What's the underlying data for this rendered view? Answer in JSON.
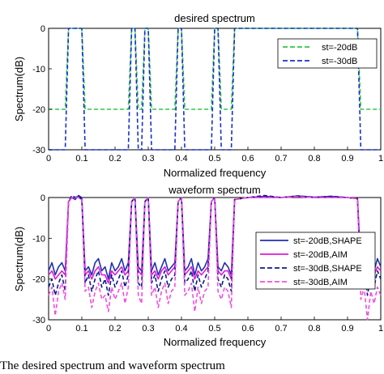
{
  "caption": "The desired spectrum and waveform spectrum",
  "chart_data": [
    {
      "type": "line",
      "title": "desired spectrum",
      "xlabel": "Normalized frequency",
      "ylabel": "Spectrum(dB)",
      "xlim": [
        0,
        1
      ],
      "ylim": [
        -30,
        0
      ],
      "xticks": [
        "0",
        "0.1",
        "0.2",
        "0.3",
        "0.4",
        "0.5",
        "0.6",
        "0.7",
        "0.8",
        "0.9",
        "1"
      ],
      "yticks": [
        "0",
        "-10",
        "-20",
        "-30"
      ],
      "grid": false,
      "legend_position": "top-right",
      "series": [
        {
          "name": "st=-20dB",
          "color": "#2ec84a",
          "dash": "dashed",
          "x": [
            0,
            0.05,
            0.06,
            0.1,
            0.11,
            0.24,
            0.25,
            0.26,
            0.27,
            0.28,
            0.29,
            0.3,
            0.31,
            0.38,
            0.39,
            0.4,
            0.41,
            0.49,
            0.5,
            0.51,
            0.52,
            0.55,
            0.56,
            0.93,
            0.94,
            1
          ],
          "y": [
            -20,
            -20,
            0,
            0,
            -20,
            -20,
            0,
            0,
            -20,
            -20,
            0,
            0,
            -20,
            -20,
            0,
            0,
            -20,
            -20,
            0,
            0,
            -20,
            -20,
            0,
            0,
            -20,
            -20
          ]
        },
        {
          "name": "st=-30dB",
          "color": "#1730c8",
          "dash": "dashed",
          "x": [
            0,
            0.05,
            0.06,
            0.1,
            0.11,
            0.24,
            0.25,
            0.26,
            0.27,
            0.28,
            0.29,
            0.3,
            0.31,
            0.38,
            0.39,
            0.4,
            0.41,
            0.49,
            0.5,
            0.51,
            0.52,
            0.55,
            0.56,
            0.93,
            0.94,
            1
          ],
          "y": [
            -30,
            -30,
            0,
            0,
            -30,
            -30,
            0,
            0,
            -30,
            -30,
            0,
            0,
            -30,
            -30,
            0,
            0,
            -30,
            -30,
            0,
            0,
            -30,
            -30,
            0,
            0,
            -30,
            -30
          ]
        }
      ]
    },
    {
      "type": "line",
      "title": "waveform spectrum",
      "xlabel": "Normalized frequency",
      "ylabel": "Spectrum(dB)",
      "xlim": [
        0,
        1
      ],
      "ylim": [
        -30,
        0
      ],
      "xticks": [
        "0",
        "0.1",
        "0.2",
        "0.3",
        "0.4",
        "0.5",
        "0.6",
        "0.7",
        "0.8",
        "0.9",
        "1"
      ],
      "yticks": [
        "0",
        "-10",
        "-20",
        "-30"
      ],
      "grid": false,
      "legend_position": "bottom-right",
      "series": [
        {
          "name": "st=-20dB,SHAPE",
          "color": "#1f2fb4",
          "dash": "solid",
          "x": [
            0,
            0.01,
            0.02,
            0.03,
            0.04,
            0.05,
            0.06,
            0.07,
            0.08,
            0.09,
            0.1,
            0.11,
            0.12,
            0.13,
            0.14,
            0.15,
            0.16,
            0.17,
            0.18,
            0.19,
            0.2,
            0.21,
            0.22,
            0.23,
            0.24,
            0.25,
            0.26,
            0.27,
            0.28,
            0.29,
            0.3,
            0.31,
            0.32,
            0.33,
            0.34,
            0.35,
            0.36,
            0.37,
            0.38,
            0.39,
            0.4,
            0.41,
            0.42,
            0.43,
            0.44,
            0.45,
            0.46,
            0.47,
            0.48,
            0.49,
            0.5,
            0.51,
            0.52,
            0.53,
            0.54,
            0.55,
            0.56,
            0.6,
            0.65,
            0.7,
            0.75,
            0.8,
            0.85,
            0.9,
            0.93,
            0.94,
            0.95,
            0.96,
            0.97,
            0.98,
            0.99,
            1
          ],
          "y": [
            -18,
            -16,
            -19,
            -17,
            -16,
            -18,
            -1,
            0,
            -0.5,
            0.5,
            0,
            -18,
            -17,
            -19,
            -16,
            -15,
            -18,
            -17,
            -20,
            -16,
            -18,
            -17,
            -15,
            -18,
            -16,
            -1,
            0,
            -17,
            -18,
            -1,
            0,
            -18,
            -16,
            -19,
            -17,
            -15,
            -18,
            -17,
            -16,
            -1,
            0,
            -18,
            -17,
            -15,
            -19,
            -16,
            -18,
            -17,
            -15,
            -1,
            0,
            -17,
            -18,
            -16,
            -17,
            -19,
            -0.5,
            0,
            0.3,
            0,
            0.4,
            0.1,
            0.3,
            0,
            -0.3,
            -17,
            -15,
            -19,
            -16,
            -18,
            -15,
            -17
          ]
        },
        {
          "name": "st=-20dB,AIM",
          "color": "#e21ad6",
          "dash": "solid",
          "x": [
            0,
            0.01,
            0.02,
            0.03,
            0.04,
            0.05,
            0.06,
            0.07,
            0.08,
            0.09,
            0.1,
            0.11,
            0.12,
            0.13,
            0.14,
            0.15,
            0.16,
            0.17,
            0.18,
            0.19,
            0.2,
            0.21,
            0.22,
            0.23,
            0.24,
            0.25,
            0.26,
            0.27,
            0.28,
            0.29,
            0.3,
            0.31,
            0.32,
            0.33,
            0.34,
            0.35,
            0.36,
            0.37,
            0.38,
            0.39,
            0.4,
            0.41,
            0.42,
            0.43,
            0.44,
            0.45,
            0.46,
            0.47,
            0.48,
            0.49,
            0.5,
            0.51,
            0.52,
            0.53,
            0.54,
            0.55,
            0.56,
            0.6,
            0.65,
            0.7,
            0.75,
            0.8,
            0.85,
            0.9,
            0.93,
            0.94,
            0.95,
            0.96,
            0.97,
            0.98,
            0.99,
            1
          ],
          "y": [
            -19,
            -18,
            -20,
            -19,
            -18,
            -19,
            -1,
            0,
            0,
            0,
            -0.5,
            -19,
            -18,
            -20,
            -18,
            -17,
            -19,
            -19,
            -21,
            -18,
            -19,
            -18,
            -17,
            -19,
            -18,
            -1,
            0,
            -18,
            -19,
            -1,
            0,
            -19,
            -18,
            -20,
            -18,
            -17,
            -19,
            -18,
            -17,
            -1,
            0,
            -19,
            -18,
            -17,
            -20,
            -18,
            -19,
            -18,
            -17,
            -1,
            0,
            -18,
            -19,
            -18,
            -18,
            -20,
            -0.5,
            0,
            0,
            0,
            0.2,
            0,
            0,
            0,
            -0.3,
            -19,
            -17,
            -20,
            -18,
            -19,
            -17,
            -18
          ]
        },
        {
          "name": "st=-30dB,SHAPE",
          "color": "#0a1a8c",
          "dash": "dashed",
          "x": [
            0,
            0.01,
            0.02,
            0.03,
            0.04,
            0.05,
            0.06,
            0.07,
            0.08,
            0.09,
            0.1,
            0.11,
            0.12,
            0.13,
            0.14,
            0.15,
            0.16,
            0.17,
            0.18,
            0.19,
            0.2,
            0.21,
            0.22,
            0.23,
            0.24,
            0.25,
            0.26,
            0.27,
            0.28,
            0.29,
            0.3,
            0.31,
            0.32,
            0.33,
            0.34,
            0.35,
            0.36,
            0.37,
            0.38,
            0.39,
            0.4,
            0.41,
            0.42,
            0.43,
            0.44,
            0.45,
            0.46,
            0.47,
            0.48,
            0.49,
            0.5,
            0.51,
            0.52,
            0.53,
            0.54,
            0.55,
            0.56,
            0.6,
            0.65,
            0.7,
            0.75,
            0.8,
            0.85,
            0.9,
            0.93,
            0.94,
            0.95,
            0.96,
            0.97,
            0.98,
            0.99,
            1
          ],
          "y": [
            -22,
            -20,
            -24,
            -21,
            -19,
            -23,
            -1,
            0.5,
            0,
            0.5,
            -0.5,
            -21,
            -19,
            -23,
            -20,
            -18,
            -22,
            -20,
            -24,
            -19,
            -22,
            -20,
            -18,
            -22,
            -19,
            -1,
            0,
            -21,
            -22,
            -1,
            0,
            -21,
            -19,
            -23,
            -20,
            -18,
            -22,
            -20,
            -19,
            -1,
            0,
            -21,
            -20,
            -18,
            -23,
            -19,
            -22,
            -20,
            -18,
            -1,
            0,
            -20,
            -22,
            -19,
            -20,
            -23,
            -0.5,
            0,
            0.5,
            0,
            0.4,
            0,
            0.3,
            0,
            -0.3,
            -21,
            -18,
            -24,
            -19,
            -22,
            -18,
            -20
          ]
        },
        {
          "name": "st=-30dB,AIM",
          "color": "#f04fe0",
          "dash": "dashed",
          "x": [
            0,
            0.01,
            0.02,
            0.03,
            0.04,
            0.05,
            0.06,
            0.07,
            0.08,
            0.09,
            0.1,
            0.11,
            0.12,
            0.13,
            0.14,
            0.15,
            0.16,
            0.17,
            0.18,
            0.19,
            0.2,
            0.21,
            0.22,
            0.23,
            0.24,
            0.25,
            0.26,
            0.27,
            0.28,
            0.29,
            0.3,
            0.31,
            0.32,
            0.33,
            0.34,
            0.35,
            0.36,
            0.37,
            0.38,
            0.39,
            0.4,
            0.41,
            0.42,
            0.43,
            0.44,
            0.45,
            0.46,
            0.47,
            0.48,
            0.49,
            0.5,
            0.51,
            0.52,
            0.53,
            0.54,
            0.55,
            0.56,
            0.6,
            0.65,
            0.7,
            0.75,
            0.8,
            0.85,
            0.9,
            0.93,
            0.94,
            0.95,
            0.96,
            0.97,
            0.98,
            0.99,
            1
          ],
          "y": [
            -24,
            -22,
            -29,
            -23,
            -21,
            -25,
            -1,
            0,
            0,
            0,
            -0.5,
            -23,
            -22,
            -27,
            -23,
            -21,
            -25,
            -24,
            -28,
            -22,
            -25,
            -23,
            -21,
            -26,
            -22,
            -1,
            0,
            -24,
            -26,
            -1,
            0,
            -24,
            -22,
            -27,
            -23,
            -21,
            -26,
            -23,
            -22,
            -1,
            0,
            -24,
            -23,
            -21,
            -28,
            -22,
            -26,
            -23,
            -22,
            -1,
            0,
            -23,
            -25,
            -22,
            -23,
            -27,
            -0.5,
            0,
            0,
            0,
            0.2,
            0,
            0,
            0,
            -0.3,
            -25,
            -22,
            -30,
            -23,
            -26,
            -22,
            -24
          ]
        }
      ]
    }
  ]
}
